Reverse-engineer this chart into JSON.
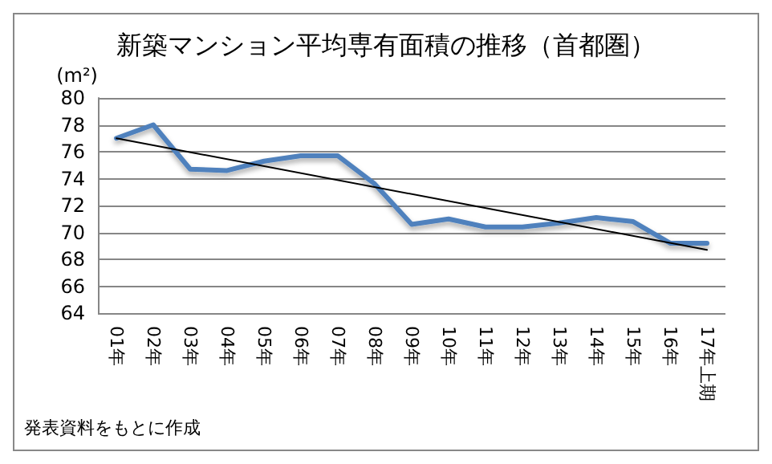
{
  "chart_data": {
    "type": "line",
    "title": "新築マンション平均専有面積の推移（首都圏）",
    "ylabel": "(m²)",
    "categories": [
      "01年",
      "02年",
      "03年",
      "04年",
      "05年",
      "06年",
      "07年",
      "08年",
      "09年",
      "10年",
      "11年",
      "12年",
      "13年",
      "14年",
      "15年",
      "16年",
      "17年上期"
    ],
    "series": [
      {
        "color": "#4f81bd",
        "values": [
          77.0,
          78.0,
          74.7,
          74.6,
          75.3,
          75.7,
          75.7,
          73.6,
          70.6,
          71.0,
          70.4,
          70.4,
          70.7,
          71.1,
          70.8,
          69.2,
          69.2
        ]
      },
      {
        "type": "line",
        "color": "#000000",
        "x": [
          "01年",
          "17年上期"
        ],
        "values": [
          77.0,
          68.7
        ]
      }
    ],
    "ylim": [
      64,
      80
    ],
    "yticks": [
      64,
      66,
      68,
      70,
      72,
      74,
      76,
      78,
      80
    ],
    "grid": "y",
    "marker": "none",
    "annotations": [
      "発表資料をもとに作成"
    ]
  }
}
